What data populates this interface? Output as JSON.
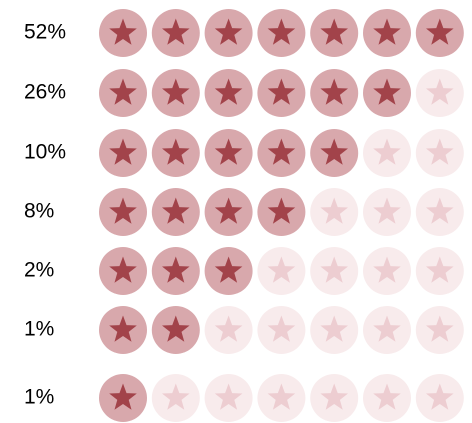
{
  "chart_data": {
    "type": "star-rating",
    "values": [
      52,
      26,
      10,
      8,
      2,
      1,
      1
    ],
    "value_labels": [
      "52%",
      "26%",
      "10%",
      "8%",
      "2%",
      "1%",
      "1%"
    ],
    "stars": [
      7,
      6,
      5,
      4,
      3,
      2,
      1
    ],
    "max_stars": 7,
    "colors": {
      "filled_circle": "#d8a8ac",
      "filled_star": "#a2434a",
      "empty_circle": "#f8ebec",
      "empty_star": "#edcdd1"
    }
  }
}
